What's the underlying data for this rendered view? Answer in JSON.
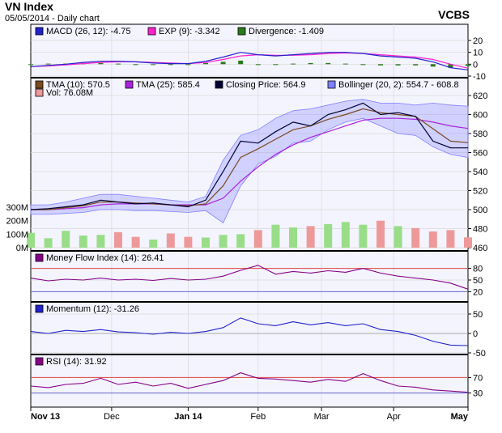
{
  "header": {
    "title": "VN Index",
    "subtitle": "05/05/2014 - Daily chart",
    "source": "VCBS"
  },
  "x_labels": [
    "Nov 13",
    "Dec",
    "Jan 14",
    "Feb",
    "Mar",
    "Apr",
    "May"
  ],
  "colors": {
    "panel_bg": "#f4f4ff",
    "grid": "#d8d8d8",
    "macd": "#2222cc",
    "exp": "#ff22cc",
    "divergence": "#2a7a1a",
    "tma10": "#7a4a20",
    "tma25": "#aa22dd",
    "close": "#000033",
    "bollinger": "#8080ff",
    "vol_up": "#99dd88",
    "vol_down": "#ee9999",
    "mfi": "#880088",
    "momentum": "#2222cc",
    "rsi": "#880088",
    "overbought": "#dd4444",
    "oversold": "#6666cc"
  },
  "chart_data": [
    {
      "type": "line",
      "panel": "macd",
      "legend": [
        "MACD (26, 12): -4.75",
        "EXP (9): -3.342",
        "Divergence: -1.409"
      ],
      "ylim": [
        -10,
        20
      ],
      "yticks": [
        "20",
        "10",
        "0",
        "-10"
      ],
      "x": [
        0,
        4,
        8,
        12,
        16,
        20,
        24,
        28,
        32,
        36,
        40,
        44,
        48,
        52,
        56,
        60,
        64,
        68,
        72,
        76,
        80,
        84,
        88,
        92,
        96,
        100
      ],
      "series": [
        {
          "name": "MACD",
          "values": [
            -2,
            -1,
            0,
            1.5,
            2.5,
            2.5,
            2,
            1,
            0.5,
            0.5,
            2.5,
            6,
            10,
            8,
            7,
            8,
            9,
            10,
            10,
            9,
            7,
            6,
            5,
            2,
            -3,
            -4.75
          ]
        },
        {
          "name": "EXP",
          "values": [
            -2,
            -1.5,
            -0.5,
            0.5,
            1.5,
            2,
            2,
            1.5,
            1,
            0.5,
            1.5,
            4,
            7,
            8,
            7.5,
            7.5,
            8,
            9,
            9.5,
            9,
            8,
            7,
            6,
            4,
            0,
            -3.342
          ]
        },
        {
          "name": "Divergence",
          "values": [
            0,
            0.5,
            0.5,
            1,
            1,
            0.5,
            0,
            -0.5,
            -0.5,
            0,
            1,
            2,
            3,
            0,
            -0.5,
            0.5,
            1,
            1,
            0.5,
            0,
            -1,
            -1,
            -1,
            -2,
            -3,
            -1.409
          ]
        }
      ]
    },
    {
      "type": "line",
      "panel": "price",
      "legend": [
        "TMA (10): 570.5",
        "TMA (25): 585.4",
        "Closing Price: 564.9",
        "Bollinger (20, 2): 554.7 - 608.8",
        "Vol: 76.08M"
      ],
      "ylim": [
        460,
        620
      ],
      "yticks": [
        "620",
        "600",
        "580",
        "560",
        "540",
        "520",
        "500",
        "480",
        "460"
      ],
      "vol_ticks": [
        "300M",
        "200M",
        "100M",
        "0M"
      ],
      "x": [
        0,
        4,
        8,
        12,
        16,
        20,
        24,
        28,
        32,
        36,
        40,
        44,
        48,
        52,
        56,
        60,
        64,
        68,
        72,
        76,
        80,
        84,
        88,
        92,
        96,
        100
      ],
      "series": [
        {
          "name": "Closing Price",
          "values": [
            500,
            501,
            503,
            505,
            510,
            508,
            506,
            507,
            505,
            503,
            510,
            540,
            572,
            570,
            582,
            592,
            588,
            600,
            605,
            612,
            600,
            602,
            598,
            572,
            565,
            564.9
          ]
        },
        {
          "name": "TMA (10)",
          "values": [
            500,
            500,
            502,
            504,
            508,
            508,
            507,
            506,
            505,
            504,
            506,
            525,
            555,
            564,
            574,
            584,
            588,
            595,
            600,
            606,
            602,
            600,
            598,
            585,
            572,
            570.5
          ]
        },
        {
          "name": "TMA (25)",
          "values": [
            500,
            500,
            501,
            502,
            505,
            506,
            506,
            506,
            505,
            505,
            505,
            512,
            530,
            545,
            558,
            568,
            576,
            582,
            588,
            594,
            596,
            596,
            595,
            592,
            588,
            585.4
          ]
        },
        {
          "name": "Bollinger Upper",
          "values": [
            505,
            505,
            508,
            512,
            516,
            516,
            514,
            512,
            510,
            508,
            514,
            552,
            578,
            584,
            596,
            604,
            606,
            610,
            614,
            616,
            612,
            612,
            610,
            612,
            610,
            608.8
          ]
        },
        {
          "name": "Bollinger Lower",
          "values": [
            495,
            495,
            496,
            497,
            500,
            500,
            499,
            499,
            498,
            497,
            499,
            486,
            525,
            548,
            556,
            570,
            572,
            584,
            592,
            596,
            588,
            580,
            578,
            566,
            558,
            554.7
          ]
        }
      ],
      "volume": [
        110,
        70,
        125,
        90,
        95,
        115,
        80,
        60,
        105,
        80,
        75,
        95,
        100,
        130,
        170,
        150,
        160,
        175,
        190,
        170,
        200,
        160,
        145,
        120,
        130,
        76.08
      ]
    },
    {
      "type": "line",
      "panel": "mfi",
      "legend": [
        "Money Flow Index (14): 26.41"
      ],
      "ylim": [
        0,
        100
      ],
      "yticks": [
        "80",
        "50",
        "20"
      ],
      "x": [
        0,
        4,
        8,
        12,
        16,
        20,
        24,
        28,
        32,
        36,
        40,
        44,
        48,
        52,
        56,
        60,
        64,
        68,
        72,
        76,
        80,
        84,
        88,
        92,
        96,
        100
      ],
      "series": [
        {
          "name": "MFI",
          "values": [
            55,
            48,
            52,
            50,
            55,
            50,
            52,
            49,
            54,
            50,
            52,
            60,
            75,
            88,
            65,
            72,
            68,
            74,
            70,
            80,
            68,
            60,
            55,
            50,
            42,
            26.41
          ]
        }
      ]
    },
    {
      "type": "line",
      "panel": "momentum",
      "legend": [
        "Momentum (12): -31.26"
      ],
      "ylim": [
        -50,
        50
      ],
      "yticks": [
        "50",
        "0",
        "-50"
      ],
      "x": [
        0,
        4,
        8,
        12,
        16,
        20,
        24,
        28,
        32,
        36,
        40,
        44,
        48,
        52,
        56,
        60,
        64,
        68,
        72,
        76,
        80,
        84,
        88,
        92,
        96,
        100
      ],
      "series": [
        {
          "name": "Momentum",
          "values": [
            5,
            0,
            8,
            5,
            10,
            4,
            2,
            -2,
            3,
            0,
            5,
            15,
            40,
            25,
            20,
            30,
            22,
            28,
            20,
            25,
            10,
            5,
            -5,
            -20,
            -30,
            -31.26
          ]
        }
      ]
    },
    {
      "type": "line",
      "panel": "rsi",
      "legend": [
        "RSI (14): 31.92"
      ],
      "ylim": [
        0,
        100
      ],
      "yticks": [
        "70",
        "30"
      ],
      "x": [
        0,
        4,
        8,
        12,
        16,
        20,
        24,
        28,
        32,
        36,
        40,
        44,
        48,
        52,
        56,
        60,
        64,
        68,
        72,
        76,
        80,
        84,
        88,
        92,
        96,
        100
      ],
      "series": [
        {
          "name": "RSI",
          "values": [
            48,
            44,
            52,
            55,
            68,
            52,
            58,
            48,
            55,
            42,
            52,
            62,
            82,
            68,
            66,
            62,
            58,
            65,
            60,
            80,
            62,
            48,
            45,
            38,
            35,
            31.92
          ]
        }
      ]
    }
  ]
}
